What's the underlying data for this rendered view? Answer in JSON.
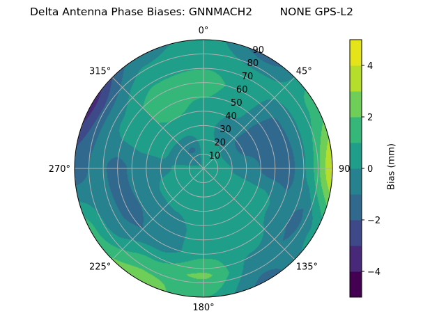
{
  "chart_data": {
    "type": "heatmap",
    "subtype": "polar-filled-contour",
    "title": "Delta Antenna Phase Biases: GNNMACH2        NONE GPS-L2",
    "angular_axis": {
      "direction": "clockwise",
      "zero_location": "top",
      "tick_labels": [
        "0°",
        "45°",
        "90",
        "135°",
        "180°",
        "225°",
        "270°",
        "315°"
      ]
    },
    "radial_axis": {
      "range": [
        0,
        90
      ],
      "tick_labels": [
        "10",
        "20",
        "30",
        "40",
        "50",
        "60",
        "70",
        "80",
        "90"
      ]
    },
    "grid": true,
    "azimuth_deg": [
      0,
      30,
      60,
      90,
      120,
      150,
      180,
      210,
      240,
      270,
      300,
      330
    ],
    "zenith_deg": [
      0,
      15,
      30,
      45,
      60,
      75,
      90
    ],
    "bias_mm": [
      [
        0.3,
        0.3,
        0.3,
        0.3,
        0.3,
        0.3,
        0.3,
        0.3,
        0.3,
        0.3,
        0.3,
        0.3
      ],
      [
        0.3,
        0.2,
        0.0,
        0.2,
        0.3,
        0.4,
        0.4,
        0.3,
        0.3,
        0.2,
        -0.8,
        -1.2
      ],
      [
        0.5,
        -0.5,
        -1.3,
        -0.5,
        0.5,
        0.5,
        0.5,
        0.3,
        0.3,
        -0.2,
        0.3,
        0.5
      ],
      [
        0.8,
        0.2,
        -1.5,
        -1.3,
        0.5,
        0.5,
        0.5,
        -0.5,
        -0.8,
        -0.6,
        0.7,
        1.3
      ],
      [
        1.5,
        0.5,
        -1.2,
        -1.5,
        -0.5,
        0.5,
        0.7,
        -0.7,
        -1.3,
        -1.3,
        0.5,
        1.5
      ],
      [
        0.7,
        0.3,
        0.3,
        0.5,
        -1.3,
        -0.5,
        2.2,
        1.3,
        -0.5,
        -0.7,
        -0.8,
        0.5
      ],
      [
        0.5,
        -1.5,
        1.5,
        4.2,
        0.5,
        -1.3,
        1.0,
        2.7,
        1.5,
        -1.5,
        -3.5,
        -0.5
      ]
    ],
    "levels": [
      -5,
      -4,
      -3,
      -2,
      -1,
      0,
      1,
      2,
      3,
      4,
      5
    ],
    "colormap": "viridis",
    "band_colors": [
      "#440154",
      "#482878",
      "#3e4989",
      "#31688e",
      "#26828e",
      "#1f9e89",
      "#35b779",
      "#6ece58",
      "#b5de2b",
      "#e5e419"
    ],
    "colorbar": {
      "label": "Bias (mm)",
      "tick_values": [
        -4,
        -2,
        0,
        2,
        4
      ],
      "tick_labels": [
        "−4",
        "−2",
        "0",
        "2",
        "4"
      ],
      "range": [
        -5,
        5
      ]
    }
  }
}
